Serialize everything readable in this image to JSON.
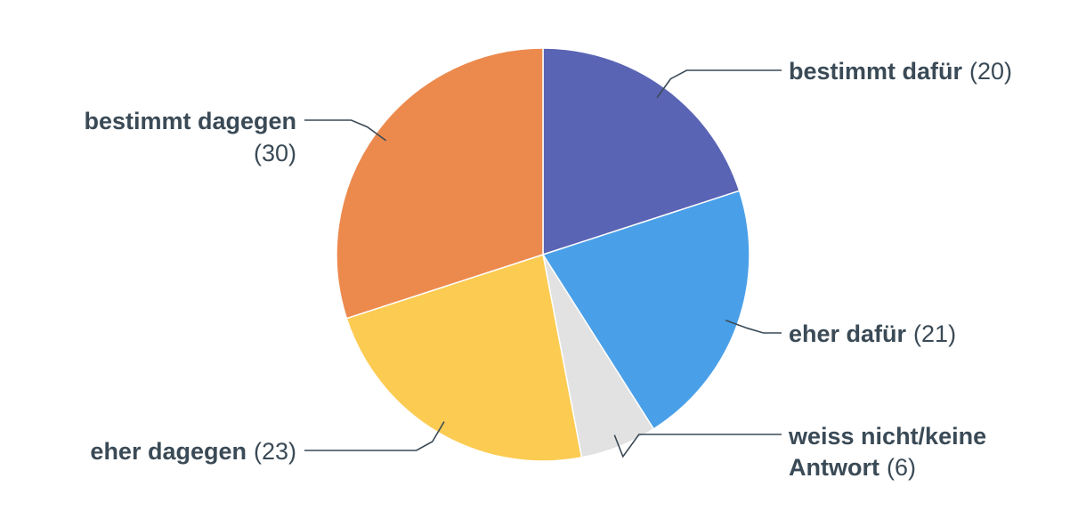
{
  "chart_data": {
    "type": "pie",
    "title": "",
    "slices": [
      {
        "label": "bestimmt dafür",
        "value": 20,
        "value_text": "(20)",
        "color": "#5a64b4"
      },
      {
        "label": "eher dafür",
        "value": 21,
        "value_text": "(21)",
        "color": "#4aa0e8"
      },
      {
        "label": "weiss nicht/keine Antwort",
        "value": 6,
        "value_text": "(6)",
        "color": "#e2e2e2"
      },
      {
        "label": "eher dagegen",
        "value": 23,
        "value_text": "(23)",
        "color": "#fccb52"
      },
      {
        "label": "bestimmt dagegen",
        "value": 30,
        "value_text": "(30)",
        "color": "#ec8a4e"
      }
    ]
  }
}
